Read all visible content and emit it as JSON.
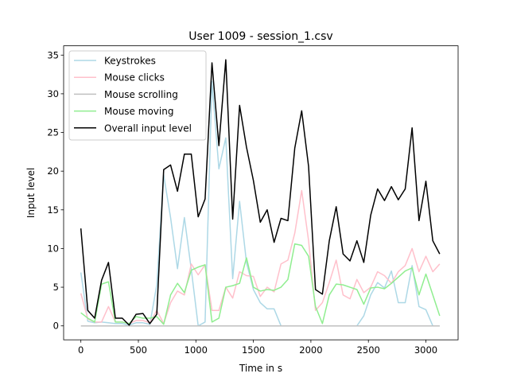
{
  "chart_data": {
    "type": "line",
    "title": "User 1009 - session_1.csv",
    "xlabel": "Time in s",
    "ylabel": "Input level",
    "xlim": [
      -150,
      3280
    ],
    "ylim": [
      -1.8,
      36.2
    ],
    "xticks": [
      0,
      500,
      1000,
      1500,
      2000,
      2500,
      3000
    ],
    "yticks": [
      0,
      5,
      10,
      15,
      20,
      25,
      30,
      35
    ],
    "grid": false,
    "legend_position": "top-left",
    "x": [
      0,
      60,
      120,
      180,
      240,
      300,
      360,
      420,
      480,
      540,
      600,
      660,
      720,
      780,
      840,
      900,
      960,
      1020,
      1080,
      1140,
      1200,
      1260,
      1320,
      1380,
      1440,
      1500,
      1560,
      1620,
      1680,
      1740,
      1800,
      1860,
      1920,
      1980,
      2040,
      2100,
      2160,
      2220,
      2280,
      2340,
      2400,
      2460,
      2520,
      2580,
      2640,
      2700,
      2760,
      2820,
      2880,
      2940,
      3000,
      3060,
      3120
    ],
    "series": [
      {
        "name": "Keystrokes",
        "color": "#add8e6",
        "values": [
          6.9,
          0.6,
          0.4,
          0.5,
          0.4,
          0.3,
          0.3,
          0.1,
          0.4,
          0.4,
          0.2,
          5.3,
          19.5,
          14.0,
          7.4,
          14.0,
          7.3,
          0.0,
          0.5,
          31.6,
          20.3,
          24.3,
          6.1,
          16.1,
          8.2,
          4.7,
          3.0,
          2.2,
          2.2,
          0.0,
          0.0,
          0.0,
          0.0,
          0.0,
          0.0,
          0.0,
          0.0,
          0.0,
          0.0,
          0.0,
          0.0,
          1.3,
          4.0,
          5.6,
          4.9,
          7.1,
          3.0,
          3.0,
          7.8,
          2.5,
          2.1,
          0.0,
          0.0
        ]
      },
      {
        "name": "Mouse clicks",
        "color": "#ffc0cb",
        "values": [
          4.2,
          0.9,
          0.5,
          0.5,
          2.5,
          0.5,
          0.5,
          0.3,
          0.7,
          0.7,
          0.4,
          2.0,
          0.3,
          3.0,
          4.5,
          4.0,
          8.0,
          6.6,
          7.9,
          2.0,
          2.0,
          5.0,
          3.6,
          7.0,
          6.5,
          6.4,
          3.8,
          5.0,
          4.4,
          8.0,
          8.5,
          12.0,
          17.5,
          11.0,
          2.0,
          3.0,
          5.6,
          8.5,
          4.0,
          3.5,
          6.0,
          4.3,
          5.0,
          7.0,
          6.5,
          5.5,
          7.0,
          7.8,
          10.0,
          7.0,
          9.0,
          7.0,
          8.0
        ]
      },
      {
        "name": "Mouse scrolling",
        "color": "#c0c0c0",
        "values": [
          0.0,
          0.0,
          0.0,
          0.0,
          0.0,
          0.0,
          0.0,
          0.0,
          0.0,
          0.0,
          0.0,
          0.0,
          0.0,
          0.0,
          0.0,
          0.0,
          0.0,
          0.0,
          0.0,
          0.0,
          0.0,
          0.0,
          0.0,
          0.0,
          0.0,
          0.0,
          0.0,
          0.0,
          0.0,
          0.0,
          0.0,
          0.0,
          0.0,
          0.0,
          0.0,
          0.0,
          0.0,
          0.0,
          0.0,
          0.0,
          0.0,
          0.0,
          0.0,
          0.0,
          0.0,
          0.0,
          0.0,
          0.0,
          0.0,
          0.0,
          0.0,
          0.0,
          0.0
        ]
      },
      {
        "name": "Mouse moving",
        "color": "#90ee90",
        "values": [
          1.7,
          1.0,
          0.5,
          5.4,
          5.7,
          0.5,
          0.5,
          0.3,
          1.2,
          1.0,
          1.0,
          1.2,
          0.2,
          4.0,
          5.5,
          4.3,
          7.2,
          7.6,
          7.9,
          0.5,
          1.0,
          5.0,
          5.2,
          5.5,
          8.8,
          5.0,
          4.5,
          4.7,
          4.6,
          5.0,
          6.0,
          10.6,
          10.4,
          9.0,
          2.5,
          0.3,
          4.0,
          5.4,
          5.3,
          5.0,
          4.7,
          2.8,
          4.9,
          5.0,
          4.8,
          5.5,
          6.3,
          7.1,
          7.5,
          4.0,
          6.7,
          4.0,
          1.3
        ]
      },
      {
        "name": "Overall input level",
        "color": "#000000",
        "values": [
          12.6,
          2.0,
          1.0,
          5.9,
          8.2,
          1.0,
          1.0,
          0.1,
          1.5,
          1.6,
          0.3,
          1.5,
          20.2,
          20.8,
          17.4,
          22.2,
          22.2,
          14.1,
          16.4,
          34.0,
          23.3,
          34.4,
          13.8,
          28.5,
          23.1,
          18.8,
          13.4,
          15.0,
          10.8,
          13.9,
          13.6,
          23.0,
          27.8,
          20.6,
          4.7,
          4.1,
          11.0,
          15.4,
          9.3,
          8.4,
          11.0,
          8.2,
          14.3,
          17.7,
          16.2,
          18.0,
          16.3,
          17.7,
          25.6,
          13.6,
          18.7,
          11.0,
          9.3
        ]
      }
    ]
  }
}
